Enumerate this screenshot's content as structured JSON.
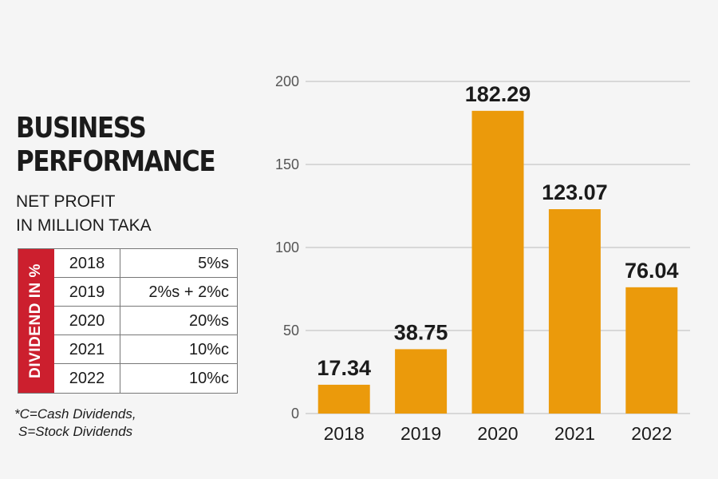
{
  "heading": {
    "title_line1": "BUSINESS",
    "title_line2": "PERFORMANCE",
    "subtitle_line1": "NET PROFIT",
    "subtitle_line2": "IN MILLION TAKA"
  },
  "dividend_table": {
    "side_label": "DIVIDEND IN %",
    "rows": [
      {
        "year": "2018",
        "value": "5%s"
      },
      {
        "year": "2019",
        "value": "2%s + 2%c"
      },
      {
        "year": "2020",
        "value": "20%s"
      },
      {
        "year": "2021",
        "value": "10%c"
      },
      {
        "year": "2022",
        "value": "10%c"
      }
    ]
  },
  "footnote": {
    "line1": "*C=Cash Dividends,",
    "line2": "S=Stock Dividends"
  },
  "colors": {
    "bar": "#eb9a0b",
    "accent_red": "#cc1f2e",
    "grid": "#cfcfcf"
  },
  "chart_data": {
    "type": "bar",
    "title": "BUSINESS PERFORMANCE",
    "ylabel": "NET PROFIT IN MILLION TAKA",
    "xlabel": "",
    "categories": [
      "2018",
      "2019",
      "2020",
      "2021",
      "2022"
    ],
    "values": [
      17.34,
      38.75,
      182.29,
      123.07,
      76.04
    ],
    "data_labels": [
      "17.34",
      "38.75",
      "182.29",
      "123.07",
      "76.04"
    ],
    "ylim": [
      0,
      200
    ],
    "yticks": [
      0,
      50,
      100,
      150,
      200
    ],
    "grid": true
  }
}
